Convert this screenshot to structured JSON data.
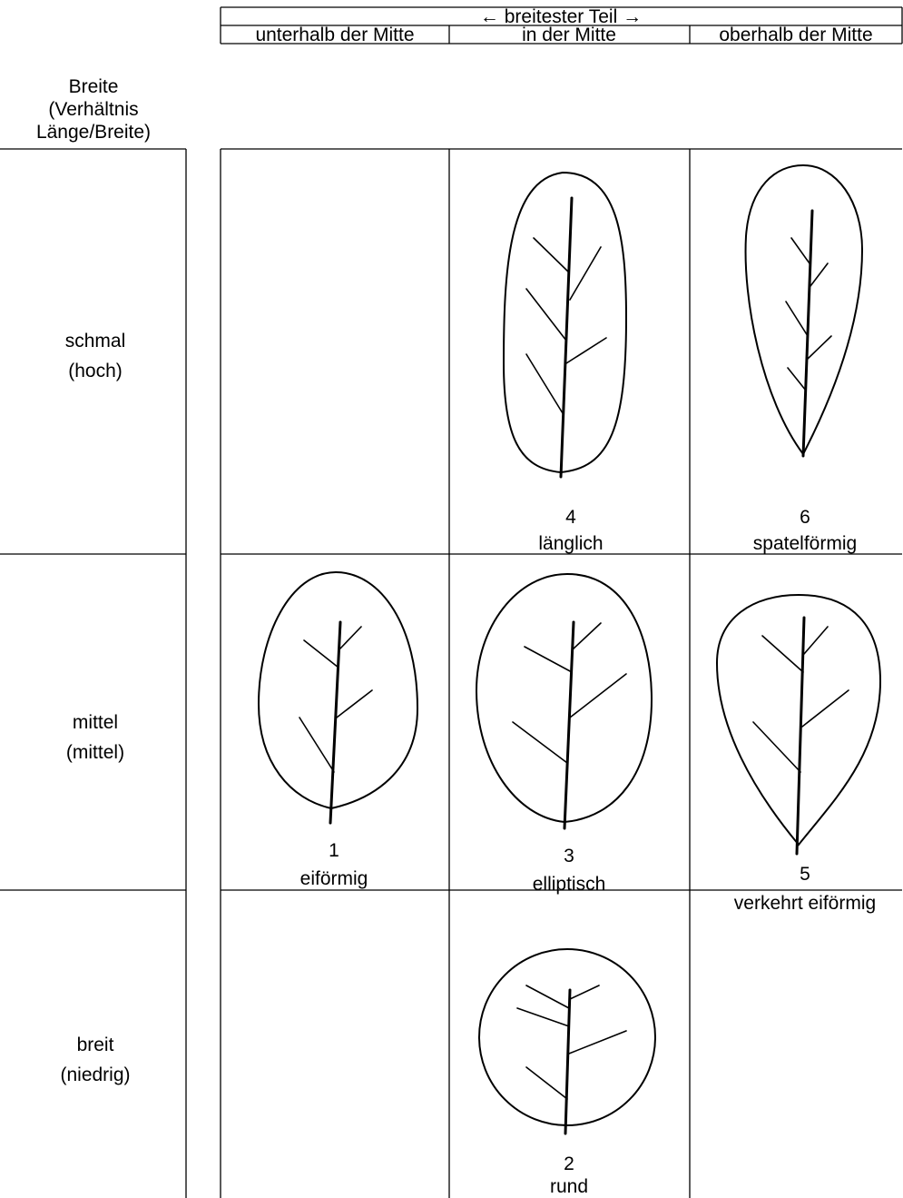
{
  "header": {
    "title": "← breitester Teil →",
    "columns": [
      "unterhalb der Mitte",
      "in der Mitte",
      "oberhalb der Mitte"
    ]
  },
  "row_header": [
    "Breite",
    "(Verhältnis",
    "Länge/Breite)"
  ],
  "rows": [
    {
      "label": [
        "schmal",
        "(hoch)"
      ],
      "cells": [
        null,
        {
          "number": 4,
          "name": "länglich"
        },
        {
          "number": 6,
          "name": "spatelförmig"
        }
      ]
    },
    {
      "label": [
        "mittel",
        "(mittel)"
      ],
      "cells": [
        {
          "number": 1,
          "name": "eiförmig"
        },
        {
          "number": 3,
          "name": "elliptisch"
        },
        {
          "number": 5,
          "name": "verkehrt eiförmig"
        }
      ]
    },
    {
      "label": [
        "breit",
        "(niedrig)"
      ],
      "cells": [
        null,
        {
          "number": 2,
          "name": "rund"
        },
        null
      ]
    }
  ]
}
